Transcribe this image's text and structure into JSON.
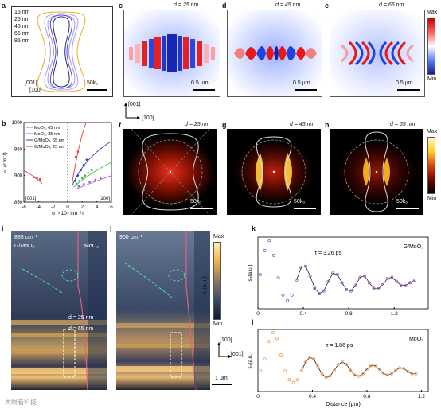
{
  "panels": {
    "a": {
      "label": "a",
      "legend": [
        "15 nm",
        "25 nm",
        "45 nm",
        "65 nm",
        "85 nm"
      ],
      "axis_y": "[001]",
      "axis_x": "[100]",
      "scale": "50k₀",
      "colors": [
        "#9aa0ff",
        "#f5a623",
        "#4a4ae8",
        "#b28ae0",
        "#1f2a6e"
      ]
    },
    "c": {
      "label": "c",
      "d": "d = 25 nm",
      "scale": "0.5 μm"
    },
    "d": {
      "label": "d",
      "d": "d = 45 nm",
      "scale": "0.5 μm"
    },
    "e": {
      "label": "e",
      "d": "d = 65 nm",
      "scale": "0.5 μm"
    },
    "cbar1": {
      "max": "Max",
      "min": "Min"
    },
    "b": {
      "label": "b",
      "legend": [
        "MoO₃, 65 nm",
        "MoO₃, 25 nm",
        "G/MoO₃, 65 nm",
        "G/MoO₃, 25 nm"
      ],
      "colors": [
        "#3ac03a",
        "#9b59d0",
        "#2b3fb8",
        "#e03a3a"
      ],
      "corner_left": "[001]",
      "corner_right": "[100]"
    },
    "axes_cf": {
      "y": "[001]",
      "x": "[100]"
    },
    "f": {
      "label": "f",
      "d": "d = 25 nm",
      "scale": "50k₀"
    },
    "g": {
      "label": "g",
      "d": "d = 45 nm",
      "scale": "50k₀"
    },
    "h": {
      "label": "h",
      "d": "d = 65 nm",
      "scale": "50k₀"
    },
    "cbar2": {
      "max": "Max",
      "min": "Min"
    },
    "i": {
      "label": "i",
      "freq": "888 cm⁻¹",
      "left": "G/MoO₃",
      "right": "MoO₃",
      "d1": "d = 25 nm",
      "d2": "d = 65 nm"
    },
    "j": {
      "label": "j",
      "freq": "900 cm⁻¹",
      "scale": "1 μm",
      "axis_y": "[100]",
      "axis_x": "[001]"
    },
    "cbar3": {
      "max": "Max",
      "min": "Min",
      "title": "s₃(a.u.)"
    },
    "k": {
      "label": "k",
      "title": "G/MoO₃",
      "tau": "τ = 3.26 ps",
      "ylabel": "s₃(a.u.)"
    },
    "l": {
      "label": "l",
      "title": "MoO₃",
      "tau": "τ = 1.86 ps",
      "ylabel": "s₃(a.u.)",
      "xlabel": "Distance (μm)"
    },
    "watermark": "大眼看科技"
  },
  "chart_data": [
    {
      "type": "scatter",
      "title": "",
      "xlabel": "q (×10⁵ cm⁻¹)",
      "ylabel": "ω (cm⁻¹)",
      "xlim": [
        -6,
        6
      ],
      "ylim": [
        850,
        1000
      ],
      "xticks": [
        -6,
        -4,
        -2,
        0,
        2,
        4,
        6
      ],
      "yticks": [
        850,
        900,
        950,
        1000
      ],
      "series": [
        {
          "name": "MoO₃, 65 nm",
          "color": "#3ac03a",
          "x": [
            1.2,
            1.6,
            2.0,
            2.4,
            2.8,
            3.3
          ],
          "y": [
            885,
            890,
            895,
            900,
            905,
            910
          ]
        },
        {
          "name": "MoO₃, 25 nm",
          "color": "#9b59d0",
          "x": [
            1.5,
            2.2,
            3.0,
            3.8,
            4.5
          ],
          "y": [
            880,
            884,
            888,
            892,
            895
          ]
        },
        {
          "name": "G/MoO₃, 65 nm",
          "color": "#2b3fb8",
          "x": [
            1.0,
            1.4,
            1.8,
            2.2,
            2.6
          ],
          "y": [
            890,
            900,
            910,
            920,
            930
          ]
        },
        {
          "name": "G/MoO₃, 25 nm",
          "color": "#e03a3a",
          "x": [
            -4.6,
            -4.2,
            -3.8,
            1.1,
            1.4
          ],
          "y": [
            897,
            895,
            893,
            935,
            945
          ]
        }
      ]
    },
    {
      "type": "scatter",
      "title": "G/MoO₃",
      "xlabel": "",
      "ylabel": "s₃(a.u.)",
      "xlim": [
        0,
        1.5
      ],
      "xticks": [
        0,
        0.4,
        0.8,
        1.2
      ],
      "series": [
        {
          "name": "",
          "color": "#9b59d0",
          "x": [
            0.02,
            0.06,
            0.1,
            0.14,
            0.18,
            0.22,
            0.26,
            0.3,
            0.34,
            0.38,
            0.42,
            0.46,
            0.5,
            0.54,
            0.58,
            0.62,
            0.66,
            0.7,
            0.74,
            0.78,
            0.82,
            0.86,
            0.9,
            0.94,
            0.98,
            1.02,
            1.06,
            1.1,
            1.14,
            1.18,
            1.22,
            1.26,
            1.3,
            1.34,
            1.38
          ],
          "y": [
            0.5,
            0.85,
            1.0,
            0.78,
            0.45,
            0.2,
            0.12,
            0.2,
            0.42,
            0.6,
            0.62,
            0.48,
            0.3,
            0.22,
            0.26,
            0.4,
            0.52,
            0.5,
            0.38,
            0.28,
            0.26,
            0.34,
            0.46,
            0.48,
            0.38,
            0.3,
            0.29,
            0.35,
            0.44,
            0.46,
            0.4,
            0.34,
            0.34,
            0.38,
            0.42
          ]
        }
      ]
    },
    {
      "type": "scatter",
      "title": "MoO₃",
      "xlabel": "Distance (μm)",
      "ylabel": "s₃(a.u.)",
      "xlim": [
        0,
        1.25
      ],
      "xticks": [
        0,
        0.4,
        0.8,
        1.2
      ],
      "series": [
        {
          "name": "",
          "color": "#f0a060",
          "x": [
            0.02,
            0.05,
            0.08,
            0.11,
            0.14,
            0.17,
            0.2,
            0.23,
            0.26,
            0.29,
            0.32,
            0.35,
            0.38,
            0.41,
            0.44,
            0.47,
            0.5,
            0.53,
            0.56,
            0.59,
            0.62,
            0.65,
            0.68,
            0.71,
            0.74,
            0.77,
            0.8,
            0.83,
            0.86,
            0.89,
            0.92,
            0.95,
            0.98,
            1.01,
            1.04,
            1.07,
            1.1,
            1.13,
            1.16
          ],
          "y": [
            0.35,
            0.55,
            0.85,
            1.0,
            0.9,
            0.62,
            0.35,
            0.2,
            0.15,
            0.2,
            0.35,
            0.5,
            0.58,
            0.55,
            0.42,
            0.3,
            0.24,
            0.26,
            0.36,
            0.46,
            0.5,
            0.46,
            0.36,
            0.28,
            0.26,
            0.3,
            0.38,
            0.44,
            0.44,
            0.38,
            0.31,
            0.28,
            0.3,
            0.36,
            0.4,
            0.39,
            0.34,
            0.3,
            0.3
          ]
        }
      ]
    }
  ]
}
